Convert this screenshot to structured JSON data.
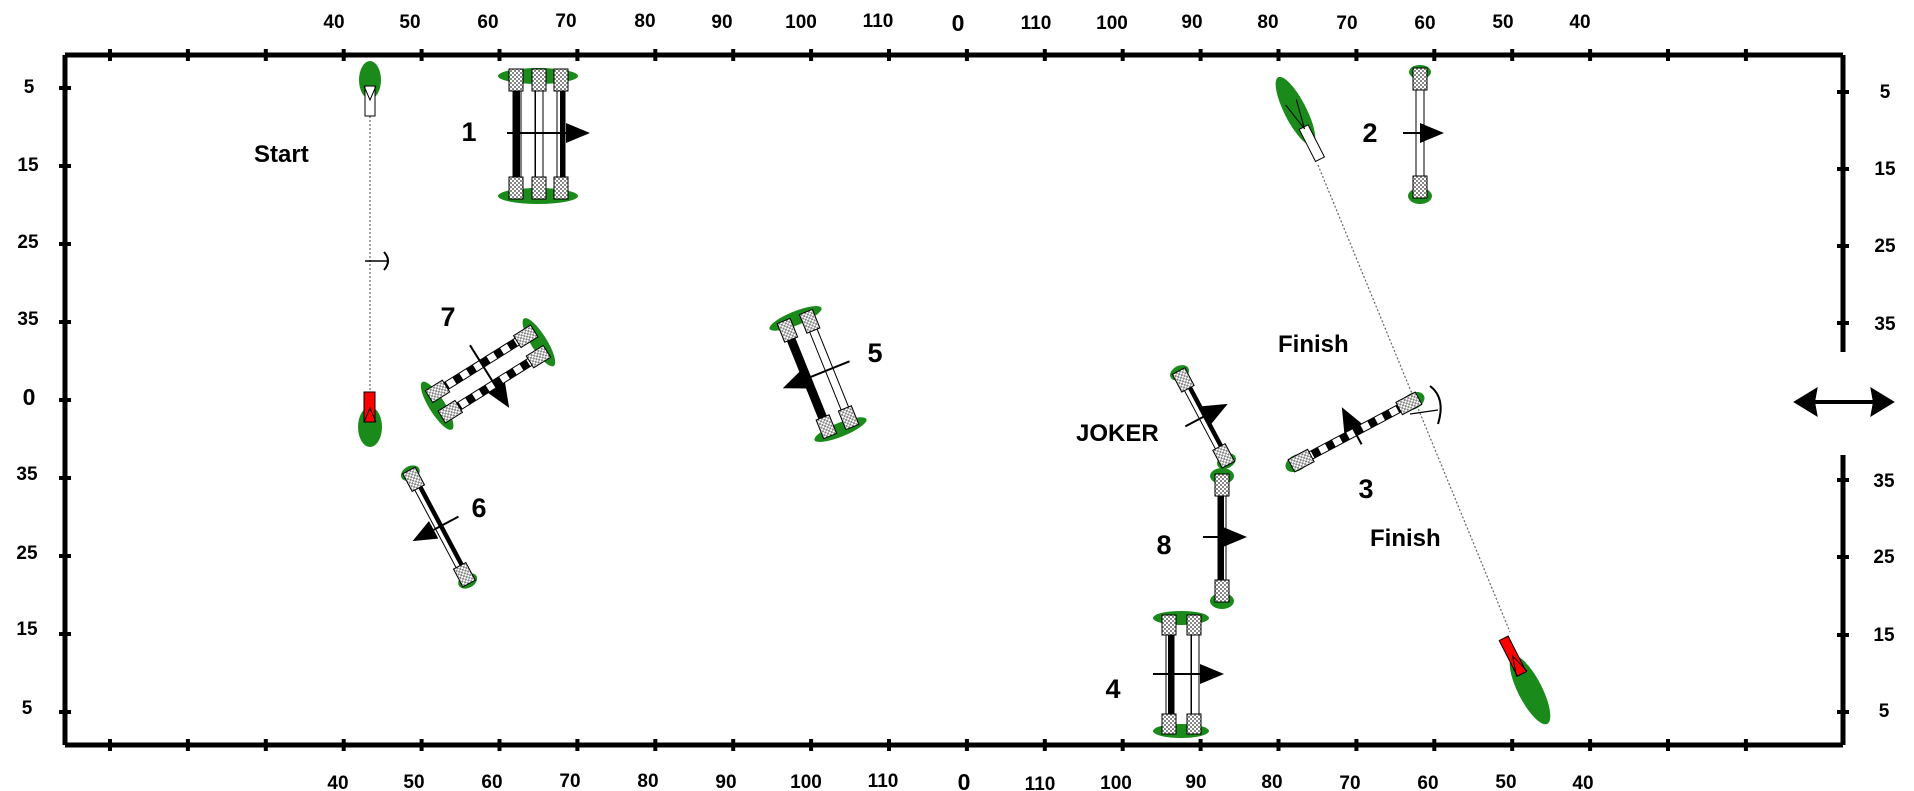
{
  "top_distance_labels": [
    "40",
    "50",
    "60",
    "70",
    "80",
    "90",
    "100",
    "110",
    "0",
    "110",
    "100",
    "90",
    "80",
    "70",
    "60",
    "50",
    "40"
  ],
  "bottom_distance_labels": [
    "40",
    "50",
    "60",
    "70",
    "80",
    "90",
    "100",
    "110",
    "0",
    "110",
    "100",
    "90",
    "80",
    "70",
    "60",
    "50",
    "40"
  ],
  "left_distance_labels": [
    "5",
    "15",
    "25",
    "35",
    "0",
    "35",
    "25",
    "15",
    "5"
  ],
  "right_distance_labels_upper": [
    "5",
    "15",
    "25",
    "35"
  ],
  "right_distance_labels_lower": [
    "35",
    "25",
    "15",
    "5"
  ],
  "labels": {
    "start": "Start",
    "finish_top": "Finish",
    "finish_bottom": "Finish",
    "joker": "JOKER"
  },
  "obstacles": [
    {
      "number": "1",
      "type": "triple-bar"
    },
    {
      "number": "2",
      "type": "vertical"
    },
    {
      "number": "3",
      "type": "vertical"
    },
    {
      "number": "4",
      "type": "oxer"
    },
    {
      "number": "5",
      "type": "oxer"
    },
    {
      "number": "6",
      "type": "vertical"
    },
    {
      "number": "7",
      "type": "oxer"
    },
    {
      "number": "8",
      "type": "vertical"
    },
    {
      "number": "",
      "type": "joker-vertical"
    }
  ],
  "colors": {
    "arena_line": "#000000",
    "hedge_green": "#1a8a1a",
    "flag_red": "#ff0000",
    "flag_white": "#ffffff",
    "pole_black": "#000000",
    "pole_white": "#ffffff",
    "standard_gray": "#b0b0b0"
  }
}
